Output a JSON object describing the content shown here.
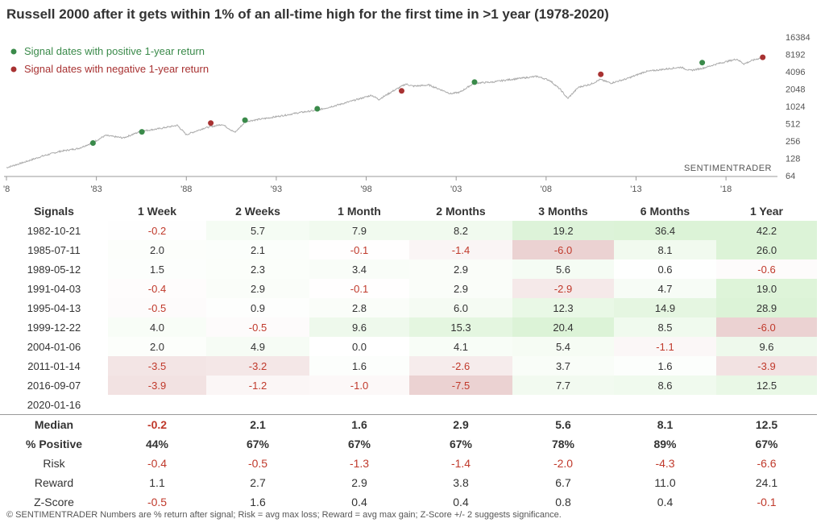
{
  "title": "Russell 2000 after it gets within 1% of an all-time high for the first time in >1 year (1978-2020)",
  "legend": [
    {
      "label": "Signal dates with positive 1-year return",
      "color": "#3a8a4a"
    },
    {
      "label": "Signal dates with negative 1-year return",
      "color": "#a83232"
    }
  ],
  "watermark": "SENTIMENTRADER",
  "colors": {
    "positive": "#3a8a4a",
    "negative": "#a83232",
    "line": "#aaaaaa"
  },
  "chart_data": {
    "type": "line",
    "scale": "log2",
    "x_range": [
      1978,
      2020.1
    ],
    "ylim": [
      64,
      16384
    ],
    "x_ticks": [
      {
        "year": 1978,
        "label": "'8"
      },
      {
        "year": 1983,
        "label": "'83"
      },
      {
        "year": 1988,
        "label": "'88"
      },
      {
        "year": 1993,
        "label": "'93"
      },
      {
        "year": 1998,
        "label": "'98"
      },
      {
        "year": 2003,
        "label": "'03"
      },
      {
        "year": 2008,
        "label": "'08"
      },
      {
        "year": 2013,
        "label": "'13"
      },
      {
        "year": 2018,
        "label": "'18"
      }
    ],
    "y_ticks": [
      64,
      128,
      256,
      512,
      1024,
      2048,
      4096,
      8192,
      16384
    ],
    "series": [
      {
        "x": [
          1978.0,
          1979.0,
          1980.0,
          1981.0,
          1982.0,
          1982.8,
          1983.5,
          1984.5,
          1985.5,
          1986.5,
          1987.5,
          1988.0,
          1989.0,
          1990.0,
          1990.7,
          1991.3,
          1992.5,
          1993.5,
          1994.3,
          1995.3,
          1996.5,
          1997.5,
          1998.3,
          1998.7,
          1999.5,
          2000.2,
          2000.6,
          2001.5,
          2002.7,
          2003.2,
          2004.0,
          2005.0,
          2006.0,
          2007.5,
          2008.2,
          2008.8,
          2009.2,
          2009.8,
          2010.5,
          2011.0,
          2011.6,
          2012.5,
          2013.5,
          2014.5,
          2015.5,
          2016.0,
          2016.7,
          2017.5,
          2018.6,
          2019.0,
          2019.5,
          2020.05
        ],
        "y": [
          88,
          110,
          140,
          170,
          190,
          240,
          320,
          290,
          380,
          420,
          480,
          330,
          430,
          500,
          360,
          560,
          640,
          720,
          800,
          880,
          1100,
          1350,
          1600,
          1350,
          1900,
          2500,
          2300,
          2400,
          1700,
          1800,
          2600,
          2700,
          3000,
          3400,
          2900,
          2000,
          1400,
          2200,
          2500,
          3000,
          2600,
          3100,
          4100,
          4500,
          4900,
          4300,
          4700,
          5600,
          6800,
          5600,
          6500,
          7300
        ]
      }
    ],
    "signals": [
      {
        "date": "1982-10-21",
        "year": 1982.81,
        "value": 236,
        "positive": true
      },
      {
        "date": "1985-07-11",
        "year": 1985.53,
        "value": 370,
        "positive": true
      },
      {
        "date": "1989-05-12",
        "year": 1989.36,
        "value": 525,
        "positive": false
      },
      {
        "date": "1991-04-03",
        "year": 1991.26,
        "value": 590,
        "positive": true
      },
      {
        "date": "1995-04-13",
        "year": 1995.28,
        "value": 930,
        "positive": true
      },
      {
        "date": "1999-12-22",
        "year": 1999.97,
        "value": 1900,
        "positive": false
      },
      {
        "date": "2004-01-06",
        "year": 2004.02,
        "value": 2700,
        "positive": true
      },
      {
        "date": "2011-01-14",
        "year": 2011.04,
        "value": 3700,
        "positive": false
      },
      {
        "date": "2016-09-07",
        "year": 2016.68,
        "value": 5900,
        "positive": true
      },
      {
        "date": "2020-01-16",
        "year": 2020.04,
        "value": 7300,
        "positive": false
      }
    ]
  },
  "table": {
    "headers": [
      "Signals",
      "1 Week",
      "2 Weeks",
      "1 Month",
      "2 Months",
      "3 Months",
      "6 Months",
      "1 Year"
    ],
    "rows": [
      {
        "date": "1982-10-21",
        "values": [
          "-0.2",
          "5.7",
          "7.9",
          "8.2",
          "19.2",
          "36.4",
          "42.2"
        ]
      },
      {
        "date": "1985-07-11",
        "values": [
          "2.0",
          "2.1",
          "-0.1",
          "-1.4",
          "-6.0",
          "8.1",
          "26.0"
        ]
      },
      {
        "date": "1989-05-12",
        "values": [
          "1.5",
          "2.3",
          "3.4",
          "2.9",
          "5.6",
          "0.6",
          "-0.6"
        ]
      },
      {
        "date": "1991-04-03",
        "values": [
          "-0.4",
          "2.9",
          "-0.1",
          "2.9",
          "-2.9",
          "4.7",
          "19.0"
        ]
      },
      {
        "date": "1995-04-13",
        "values": [
          "-0.5",
          "0.9",
          "2.8",
          "6.0",
          "12.3",
          "14.9",
          "28.9"
        ]
      },
      {
        "date": "1999-12-22",
        "values": [
          "4.0",
          "-0.5",
          "9.6",
          "15.3",
          "20.4",
          "8.5",
          "-6.0"
        ]
      },
      {
        "date": "2004-01-06",
        "values": [
          "2.0",
          "4.9",
          "0.0",
          "4.1",
          "5.4",
          "-1.1",
          "9.6"
        ]
      },
      {
        "date": "2011-01-14",
        "values": [
          "-3.5",
          "-3.2",
          "1.6",
          "-2.6",
          "3.7",
          "1.6",
          "-3.9"
        ]
      },
      {
        "date": "2016-09-07",
        "values": [
          "-3.9",
          "-1.2",
          "-1.0",
          "-7.5",
          "7.7",
          "8.6",
          "12.5"
        ]
      },
      {
        "date": "2020-01-16",
        "values": [
          "",
          "",
          "",
          "",
          "",
          "",
          ""
        ]
      }
    ],
    "summary": [
      {
        "label": "Median",
        "values": [
          "-0.2",
          "2.1",
          "1.6",
          "2.9",
          "5.6",
          "8.1",
          "12.5"
        ],
        "bold": true
      },
      {
        "label": "% Positive",
        "values": [
          "44%",
          "67%",
          "67%",
          "67%",
          "78%",
          "89%",
          "67%"
        ],
        "bold": true
      },
      {
        "label": "Risk",
        "values": [
          "-0.4",
          "-0.5",
          "-1.3",
          "-1.4",
          "-2.0",
          "-4.3",
          "-6.6"
        ],
        "bold": false
      },
      {
        "label": "Reward",
        "values": [
          "1.1",
          "2.7",
          "2.9",
          "3.8",
          "6.7",
          "11.0",
          "24.1"
        ],
        "bold": false
      },
      {
        "label": "Z-Score",
        "values": [
          "-0.5",
          "1.6",
          "0.4",
          "0.4",
          "0.8",
          "0.4",
          "-0.1"
        ],
        "bold": false
      }
    ]
  },
  "footer": "© SENTIMENTRADER  Numbers are % return after signal; Risk = avg max loss; Reward = avg max gain; Z-Score +/- 2 suggests significance."
}
